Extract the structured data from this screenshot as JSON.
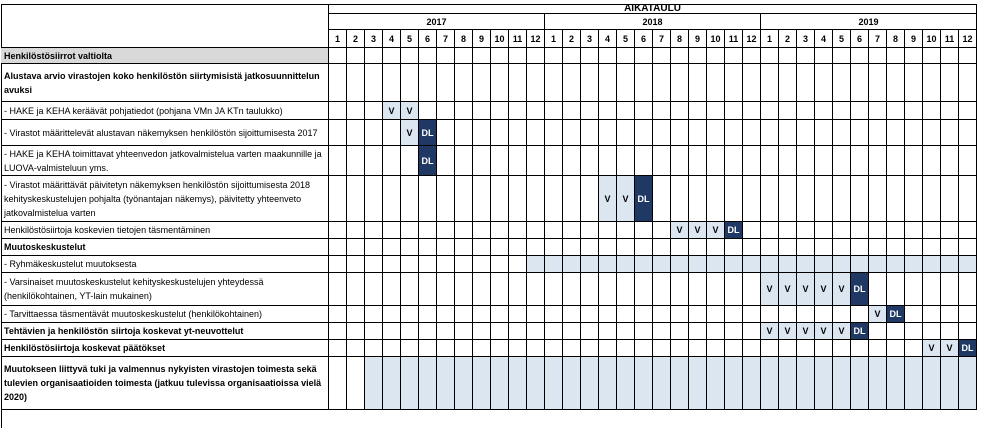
{
  "header": {
    "title": "AIKATAULU",
    "years": [
      "2017",
      "2018",
      "2019"
    ]
  },
  "months": [
    "1",
    "2",
    "3",
    "4",
    "5",
    "6",
    "7",
    "8",
    "9",
    "10",
    "11",
    "12"
  ],
  "rows": [
    {
      "label": "Henkilöstösiirrot valtiolta",
      "bold": true,
      "shaded": true,
      "cells": {}
    },
    {
      "label": "Alustava arvio virastojen koko henkilöstön siirtymisistä jatkosuunnittelun avuksi",
      "bold": true,
      "cells": {}
    },
    {
      "label": "- HAKE ja KEHA keräävät pohjatiedot (pohjana VMn JA KTn taulukko)",
      "cells": {
        "4": "V",
        "5": "V"
      }
    },
    {
      "label": "- Virastot määrittelevät alustavan näkemyksen henkilöstön sijoittumisesta 2017",
      "cells": {
        "5": "V",
        "6": "DL"
      }
    },
    {
      "label": "- HAKE ja KEHA toimittavat yhteenvedon jatkovalmistelua varten maakunnille ja LUOVA-valmisteluun yms.",
      "cells": {
        "6": "DL"
      }
    },
    {
      "label": "- Virastot määrittävät päivitetyn näkemyksen henkilöstön sijoittumisesta 2018 kehityskeskustelujen pohjalta (työnantajan näkemys), päivitetty yhteenveto jatkovalmistelua varten",
      "cells": {
        "16": "V",
        "17": "V",
        "18": "DL"
      }
    },
    {
      "label": "Henkilöstösiirtoja koskevien tietojen täsmentäminen",
      "cells": {
        "20": "V",
        "21": "V",
        "22": "V",
        "23": "DL"
      }
    },
    {
      "label": "Muutoskeskustelut",
      "bold": true,
      "cells": {}
    },
    {
      "label": "- Ryhmäkeskustelut muutoksesta",
      "cells": {},
      "shade": [
        12,
        36
      ]
    },
    {
      "label": "- Varsinaiset muutoskeskustelut kehityskeskustelujen yhteydessä (henkilökohtainen, YT-lain mukainen)",
      "cells": {
        "25": "V",
        "26": "V",
        "27": "V",
        "28": "V",
        "29": "V",
        "30": "DL"
      }
    },
    {
      "label": "- Tarvittaessa täsmentävät muutoskeskustelut (henkilökohtainen)",
      "cells": {
        "31": "V",
        "32": "DL"
      }
    },
    {
      "label": "Tehtävien ja henkilöstön siirtoja koskevat yt-neuvottelut",
      "bold": true,
      "cells": {
        "25": "V",
        "26": "V",
        "27": "V",
        "28": "V",
        "29": "V",
        "30": "DL"
      }
    },
    {
      "label": "Henkilöstösiirtoja koskevat päätökset",
      "bold": true,
      "cells": {
        "34": "V",
        "35": "V",
        "36": "DL"
      }
    },
    {
      "label": "Muutokseen liittyvä tuki ja valmennus nykyisten virastojen toimesta sekä tulevien organisaatioiden toimesta (jatkuu tulevissa organisaatioissa vielä 2020)",
      "bold": true,
      "cells": {},
      "shade": [
        3,
        36
      ]
    }
  ],
  "colors": {
    "dl": "#1f3864",
    "shade": "#dce6f1",
    "header_shade": "#d9d9d9"
  }
}
